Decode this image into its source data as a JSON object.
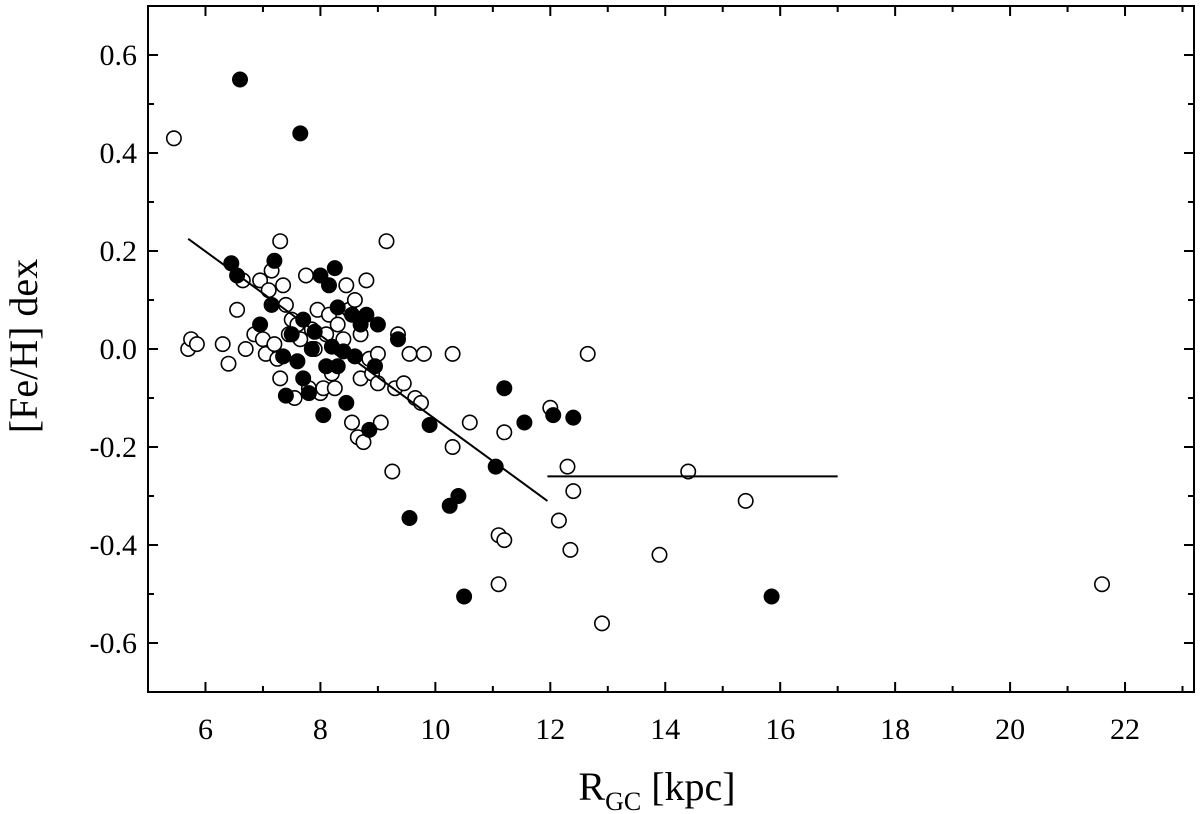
{
  "chart_data": {
    "type": "scatter",
    "xlabel": {
      "main": "R",
      "sub": "GC",
      "rest": " [kpc]"
    },
    "ylabel": "[Fe/H] dex",
    "xlim": [
      5,
      23.2
    ],
    "ylim": [
      -0.7,
      0.7
    ],
    "x_major_ticks": [
      6,
      8,
      10,
      12,
      14,
      16,
      18,
      20,
      22
    ],
    "x_minor_ticks": [
      5,
      7,
      9,
      11,
      13,
      15,
      17,
      19,
      21,
      23
    ],
    "y_major_ticks": [
      0.6,
      0.4,
      0.2,
      0.0,
      -0.2,
      -0.4,
      -0.6
    ],
    "y_minor_ticks": [
      0.5,
      0.3,
      0.1,
      -0.1,
      -0.3,
      -0.5
    ],
    "x_tick_labels": [
      "6",
      "8",
      "10",
      "12",
      "14",
      "16",
      "18",
      "20",
      "22"
    ],
    "y_tick_labels": [
      "0.6",
      "0.4",
      "0.2",
      "0.0",
      "-0.2",
      "-0.4",
      "-0.6"
    ],
    "grid": false,
    "legend": "none",
    "colors": {
      "filled": "#000000",
      "open_fill": "#ffffff",
      "stroke": "#000000"
    },
    "series": [
      {
        "marker": "open-circle",
        "points": [
          [
            5.45,
            0.43
          ],
          [
            5.7,
            0.0
          ],
          [
            5.75,
            0.02
          ],
          [
            5.85,
            0.01
          ],
          [
            6.3,
            0.01
          ],
          [
            6.4,
            -0.03
          ],
          [
            6.55,
            0.08
          ],
          [
            6.65,
            0.14
          ],
          [
            6.7,
            0.0
          ],
          [
            6.85,
            0.03
          ],
          [
            6.95,
            0.14
          ],
          [
            7.0,
            0.02
          ],
          [
            7.05,
            -0.01
          ],
          [
            7.1,
            0.12
          ],
          [
            7.15,
            0.16
          ],
          [
            7.2,
            0.01
          ],
          [
            7.25,
            -0.02
          ],
          [
            7.3,
            0.22
          ],
          [
            7.3,
            -0.06
          ],
          [
            7.35,
            0.13
          ],
          [
            7.4,
            0.09
          ],
          [
            7.45,
            0.03
          ],
          [
            7.5,
            0.06
          ],
          [
            7.55,
            -0.1
          ],
          [
            7.6,
            0.05
          ],
          [
            7.65,
            0.02
          ],
          [
            7.75,
            0.15
          ],
          [
            7.8,
            -0.08
          ],
          [
            7.85,
            0.04
          ],
          [
            7.9,
            0.0
          ],
          [
            7.95,
            0.08
          ],
          [
            8.0,
            -0.09
          ],
          [
            8.05,
            -0.08
          ],
          [
            8.1,
            0.03
          ],
          [
            8.15,
            0.07
          ],
          [
            8.2,
            -0.05
          ],
          [
            8.25,
            -0.08
          ],
          [
            8.3,
            0.05
          ],
          [
            8.35,
            0.0
          ],
          [
            8.4,
            0.02
          ],
          [
            8.45,
            0.13
          ],
          [
            8.5,
            0.08
          ],
          [
            8.55,
            -0.15
          ],
          [
            8.6,
            0.1
          ],
          [
            8.65,
            -0.18
          ],
          [
            8.7,
            0.03
          ],
          [
            8.7,
            -0.06
          ],
          [
            8.75,
            -0.19
          ],
          [
            8.8,
            0.14
          ],
          [
            8.85,
            -0.02
          ],
          [
            8.9,
            -0.05
          ],
          [
            9.0,
            -0.01
          ],
          [
            9.0,
            -0.07
          ],
          [
            9.05,
            -0.15
          ],
          [
            9.15,
            0.22
          ],
          [
            9.25,
            -0.25
          ],
          [
            9.3,
            -0.08
          ],
          [
            9.35,
            0.03
          ],
          [
            9.45,
            -0.07
          ],
          [
            9.55,
            -0.01
          ],
          [
            9.65,
            -0.1
          ],
          [
            9.75,
            -0.11
          ],
          [
            9.8,
            -0.01
          ],
          [
            10.3,
            -0.01
          ],
          [
            10.3,
            -0.2
          ],
          [
            10.6,
            -0.15
          ],
          [
            11.1,
            -0.38
          ],
          [
            11.1,
            -0.48
          ],
          [
            11.2,
            -0.17
          ],
          [
            11.2,
            -0.39
          ],
          [
            12.0,
            -0.12
          ],
          [
            12.15,
            -0.35
          ],
          [
            12.3,
            -0.24
          ],
          [
            12.35,
            -0.41
          ],
          [
            12.4,
            -0.29
          ],
          [
            12.65,
            -0.01
          ],
          [
            12.9,
            -0.56
          ],
          [
            13.9,
            -0.42
          ],
          [
            14.4,
            -0.25
          ],
          [
            15.4,
            -0.31
          ],
          [
            21.6,
            -0.48
          ]
        ]
      },
      {
        "marker": "filled-circle",
        "points": [
          [
            6.45,
            0.175
          ],
          [
            6.55,
            0.15
          ],
          [
            6.6,
            0.55
          ],
          [
            6.95,
            0.05
          ],
          [
            7.15,
            0.09
          ],
          [
            7.2,
            0.18
          ],
          [
            7.35,
            -0.015
          ],
          [
            7.4,
            -0.095
          ],
          [
            7.5,
            0.03
          ],
          [
            7.6,
            -0.025
          ],
          [
            7.65,
            0.44
          ],
          [
            7.7,
            0.06
          ],
          [
            7.7,
            -0.06
          ],
          [
            7.8,
            -0.09
          ],
          [
            7.85,
            0.0
          ],
          [
            7.9,
            0.035
          ],
          [
            8.0,
            0.15
          ],
          [
            8.05,
            -0.135
          ],
          [
            8.1,
            -0.035
          ],
          [
            8.15,
            0.13
          ],
          [
            8.2,
            0.005
          ],
          [
            8.25,
            0.165
          ],
          [
            8.3,
            -0.035
          ],
          [
            8.3,
            0.085
          ],
          [
            8.4,
            -0.005
          ],
          [
            8.45,
            -0.11
          ],
          [
            8.55,
            0.07
          ],
          [
            8.6,
            -0.015
          ],
          [
            8.7,
            0.05
          ],
          [
            8.8,
            0.07
          ],
          [
            8.85,
            -0.165
          ],
          [
            8.95,
            -0.035
          ],
          [
            9.0,
            0.05
          ],
          [
            9.35,
            0.02
          ],
          [
            9.55,
            -0.345
          ],
          [
            9.9,
            -0.155
          ],
          [
            10.25,
            -0.32
          ],
          [
            10.4,
            -0.3
          ],
          [
            10.5,
            -0.505
          ],
          [
            11.05,
            -0.24
          ],
          [
            11.2,
            -0.08
          ],
          [
            11.55,
            -0.15
          ],
          [
            12.05,
            -0.135
          ],
          [
            12.4,
            -0.14
          ],
          [
            15.85,
            -0.505
          ]
        ]
      }
    ],
    "lines": [
      {
        "points": [
          [
            5.7,
            0.225
          ],
          [
            11.95,
            -0.31
          ]
        ]
      },
      {
        "points": [
          [
            11.95,
            -0.26
          ],
          [
            17.0,
            -0.26
          ]
        ]
      }
    ]
  }
}
